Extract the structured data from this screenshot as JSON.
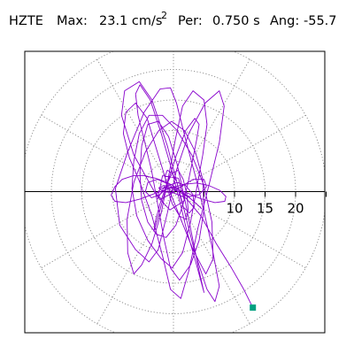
{
  "header": {
    "station": "HZTE",
    "max_label": "Max:",
    "max_value": "23.1 cm/s",
    "max_exp": "2",
    "period_label": "Per:",
    "period_value": "0.750 s",
    "angle_label": "Ang:",
    "angle_value": "-55.7"
  },
  "chart_data": {
    "type": "polar-hodogram",
    "radial_rings": [
      5,
      10,
      15,
      20,
      25
    ],
    "radial_tick_labels": [
      "10",
      "15",
      "20"
    ],
    "radial_tick_values": [
      10,
      15,
      20
    ],
    "max_radius": 25,
    "trace_color": "#8800cc",
    "grid_color": "#888888",
    "end_marker_color": "#00a080",
    "end_point": {
      "x": 13.0,
      "y": -19.0
    },
    "trace": [
      [
        0,
        0
      ],
      [
        -1.5,
        0.8
      ],
      [
        -2.6,
        -1.2
      ],
      [
        -1.8,
        2.6
      ],
      [
        0.8,
        2.2
      ],
      [
        1.8,
        -1.5
      ],
      [
        -0.6,
        -3.0
      ],
      [
        -2.8,
        -0.6
      ],
      [
        -6.5,
        6.0
      ],
      [
        -8.5,
        12.5
      ],
      [
        -8.0,
        16.5
      ],
      [
        -5.6,
        18.0
      ],
      [
        -3.5,
        15.0
      ],
      [
        -1.0,
        7.5
      ],
      [
        1.5,
        -2.0
      ],
      [
        3.5,
        -10.0
      ],
      [
        5.5,
        -16.0
      ],
      [
        6.8,
        -18.0
      ],
      [
        7.5,
        -15.5
      ],
      [
        6.2,
        -8.5
      ],
      [
        4.0,
        1.0
      ],
      [
        2.0,
        8.5
      ],
      [
        0.5,
        14.5
      ],
      [
        -0.5,
        17.0
      ],
      [
        -2.2,
        16.8
      ],
      [
        -4.8,
        13.0
      ],
      [
        -7.5,
        6.5
      ],
      [
        -9.5,
        0.5
      ],
      [
        -8.8,
        -5.5
      ],
      [
        -6.2,
        -9.5
      ],
      [
        -4.0,
        -11.5
      ],
      [
        -2.5,
        -9.5
      ],
      [
        -1.0,
        -3.5
      ],
      [
        0.5,
        3.5
      ],
      [
        2.5,
        9.5
      ],
      [
        5.2,
        14.5
      ],
      [
        7.5,
        16.5
      ],
      [
        8.3,
        14.0
      ],
      [
        7.5,
        8.0
      ],
      [
        5.8,
        1.0
      ],
      [
        4.0,
        -6.0
      ],
      [
        2.5,
        -13.0
      ],
      [
        1.2,
        -17.5
      ],
      [
        -0.5,
        -16.0
      ],
      [
        -1.8,
        -10.5
      ],
      [
        -3.5,
        -4.0
      ],
      [
        -5.5,
        1.5
      ],
      [
        -7.2,
        5.5
      ],
      [
        -8.2,
        9.5
      ],
      [
        -7.8,
        13.0
      ],
      [
        -6.2,
        14.5
      ],
      [
        -4.3,
        12.0
      ],
      [
        -2.5,
        6.0
      ],
      [
        -0.8,
        0.5
      ],
      [
        1.2,
        -4.5
      ],
      [
        3.2,
        -9.5
      ],
      [
        5.3,
        -13.5
      ],
      [
        6.5,
        -11.0
      ],
      [
        6.3,
        -5.0
      ],
      [
        5.0,
        1.0
      ],
      [
        3.0,
        6.0
      ],
      [
        0.6,
        10.0
      ],
      [
        -1.8,
        12.5
      ],
      [
        -4.0,
        12.5
      ],
      [
        -5.6,
        9.5
      ],
      [
        -6.5,
        5.0
      ],
      [
        -6.8,
        0.5
      ],
      [
        -6.0,
        -4.0
      ],
      [
        -4.2,
        -8.0
      ],
      [
        -2.0,
        -11.0
      ],
      [
        -0.2,
        -12.5
      ],
      [
        1.5,
        -10.0
      ],
      [
        2.8,
        -5.0
      ],
      [
        3.8,
        0.5
      ],
      [
        4.8,
        6.0
      ],
      [
        5.5,
        11.0
      ],
      [
        5.0,
        15.0
      ],
      [
        3.2,
        16.5
      ],
      [
        1.5,
        14.0
      ],
      [
        0.3,
        8.5
      ],
      [
        -0.8,
        2.5
      ],
      [
        -2.0,
        -3.5
      ],
      [
        -3.5,
        -8.5
      ],
      [
        -5.2,
        -12.0
      ],
      [
        -6.5,
        -13.5
      ],
      [
        -7.5,
        -10.0
      ],
      [
        -7.6,
        -4.5
      ],
      [
        -6.5,
        1.5
      ],
      [
        -4.6,
        6.5
      ],
      [
        -2.4,
        10.0
      ],
      [
        -0.3,
        11.5
      ],
      [
        1.8,
        10.0
      ],
      [
        3.6,
        6.5
      ],
      [
        4.8,
        2.0
      ],
      [
        5.0,
        -3.0
      ],
      [
        4.2,
        -8.0
      ],
      [
        2.8,
        -12.0
      ],
      [
        1.0,
        -14.5
      ],
      [
        -0.5,
        -12.5
      ],
      [
        -1.6,
        -7.5
      ],
      [
        -2.6,
        -2.0
      ],
      [
        -3.6,
        3.5
      ],
      [
        -4.8,
        8.5
      ],
      [
        -5.8,
        12.5
      ],
      [
        -6.2,
        16.0
      ],
      [
        -5.5,
        17.5
      ],
      [
        -3.8,
        15.0
      ],
      [
        -2.0,
        9.5
      ],
      [
        -0.4,
        4.0
      ],
      [
        1.0,
        -1.5
      ],
      [
        2.2,
        -6.5
      ],
      [
        3.5,
        -11.0
      ],
      [
        4.6,
        -15.0
      ],
      [
        5.0,
        -16.5
      ],
      [
        4.2,
        -13.0
      ],
      [
        3.0,
        -7.0
      ],
      [
        1.8,
        -1.0
      ],
      [
        0.6,
        4.5
      ],
      [
        -0.8,
        9.0
      ],
      [
        -2.5,
        11.5
      ],
      [
        -4.2,
        11.0
      ],
      [
        -5.2,
        7.5
      ],
      [
        -5.5,
        3.0
      ],
      [
        -5.2,
        -1.5
      ],
      [
        -4.2,
        -5.0
      ],
      [
        -2.8,
        -7.0
      ],
      [
        -1.2,
        -7.5
      ],
      [
        0.4,
        -5.5
      ],
      [
        1.6,
        -2.0
      ],
      [
        2.5,
        2.0
      ],
      [
        3.2,
        5.5
      ],
      [
        3.8,
        8.5
      ],
      [
        4.2,
        11.0
      ],
      [
        3.5,
        12.0
      ],
      [
        2.0,
        10.0
      ],
      [
        0.5,
        6.0
      ],
      [
        -0.8,
        2.0
      ],
      [
        -1.8,
        -1.5
      ],
      [
        -2.6,
        -4.5
      ],
      [
        -3.2,
        -6.5
      ],
      [
        -3.0,
        -5.0
      ],
      [
        -2.2,
        -2.0
      ],
      [
        -1.2,
        1.0
      ],
      [
        -0.2,
        3.0
      ],
      [
        0.8,
        3.5
      ],
      [
        1.6,
        2.0
      ],
      [
        2.2,
        -0.5
      ],
      [
        2.4,
        -3.0
      ],
      [
        2.0,
        -4.5
      ],
      [
        1.0,
        -4.0
      ],
      [
        -0.2,
        -2.0
      ],
      [
        -1.0,
        0.5
      ],
      [
        -1.4,
        2.5
      ],
      [
        -1.0,
        3.5
      ],
      [
        -0.2,
        3.0
      ],
      [
        0.6,
        1.5
      ],
      [
        1.0,
        -0.5
      ],
      [
        1.6,
        -2.5
      ],
      [
        2.6,
        -3.5
      ],
      [
        3.4,
        -2.5
      ],
      [
        3.2,
        -0.5
      ],
      [
        2.0,
        1.0
      ],
      [
        0.6,
        1.5
      ],
      [
        -0.8,
        1.0
      ],
      [
        -2.2,
        -0.5
      ],
      [
        -3.6,
        -1.0
      ],
      [
        -4.6,
        0.0
      ],
      [
        -4.2,
        1.5
      ],
      [
        -2.6,
        2.0
      ],
      [
        -0.8,
        1.2
      ],
      [
        0.8,
        0.0
      ],
      [
        2.6,
        -0.8
      ],
      [
        4.2,
        -0.5
      ],
      [
        5.4,
        0.8
      ],
      [
        5.0,
        2.0
      ],
      [
        3.2,
        2.0
      ],
      [
        1.2,
        0.8
      ],
      [
        -0.6,
        -0.5
      ],
      [
        -2.0,
        -1.2
      ],
      [
        -2.8,
        -0.4
      ],
      [
        -2.0,
        0.6
      ],
      [
        -0.4,
        0.6
      ],
      [
        1.2,
        -0.2
      ],
      [
        2.6,
        -1.0
      ],
      [
        3.8,
        -2.0
      ],
      [
        4.6,
        -2.8
      ],
      [
        4.0,
        -2.2
      ],
      [
        2.4,
        -0.8
      ],
      [
        0.6,
        0.6
      ],
      [
        -1.2,
        1.6
      ],
      [
        -3.0,
        2.2
      ],
      [
        -4.8,
        2.6
      ],
      [
        -6.6,
        2.6
      ],
      [
        -8.4,
        2.0
      ],
      [
        -9.6,
        0.8
      ],
      [
        -10.2,
        -0.6
      ],
      [
        -9.6,
        -1.6
      ],
      [
        -7.8,
        -1.8
      ],
      [
        -5.4,
        -1.2
      ],
      [
        -2.8,
        -0.2
      ],
      [
        -0.4,
        0.6
      ],
      [
        1.8,
        1.2
      ],
      [
        3.8,
        1.4
      ],
      [
        5.8,
        1.0
      ],
      [
        7.6,
        0.2
      ],
      [
        8.6,
        -0.8
      ],
      [
        8.4,
        -1.6
      ],
      [
        6.8,
        -1.8
      ],
      [
        4.6,
        -1.2
      ],
      [
        2.2,
        -0.2
      ],
      [
        0.2,
        0.6
      ],
      [
        -1.6,
        1.0
      ],
      [
        -2.4,
        0.6
      ],
      [
        -1.6,
        0.0
      ],
      [
        0.0,
        -0.2
      ],
      [
        2.0,
        -1.0
      ],
      [
        4.5,
        -4.0
      ],
      [
        7.0,
        -8.5
      ],
      [
        9.5,
        -12.5
      ],
      [
        11.5,
        -16.0
      ],
      [
        13.0,
        -19.0
      ]
    ]
  }
}
